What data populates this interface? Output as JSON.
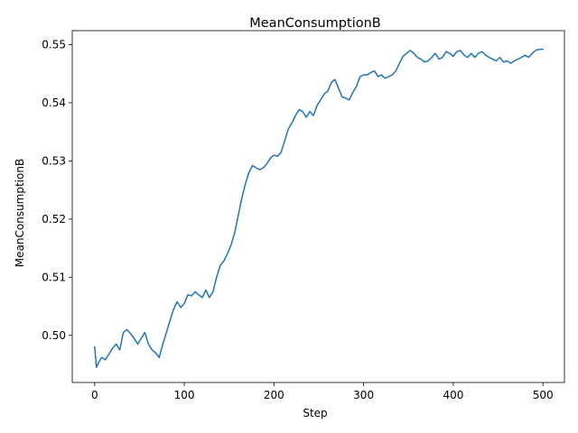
{
  "chart_data": {
    "type": "line",
    "title": "MeanConsumptionB",
    "xlabel": "Step",
    "ylabel": "MeanConsumptionB",
    "xlim": [
      -25,
      524
    ],
    "ylim": [
      0.4919,
      0.5524
    ],
    "xticks": [
      0,
      100,
      200,
      300,
      400,
      500
    ],
    "yticks": [
      0.5,
      0.51,
      0.52,
      0.53,
      0.54,
      0.55
    ],
    "xtick_labels": [
      "0",
      "100",
      "200",
      "300",
      "400",
      "500"
    ],
    "ytick_labels": [
      "0.50",
      "0.51",
      "0.52",
      "0.53",
      "0.54",
      "0.55"
    ],
    "grid": false,
    "legend": "none",
    "series": [
      {
        "color": "#1f77b4",
        "x": [
          0,
          2,
          5,
          8,
          12,
          16,
          20,
          24,
          28,
          32,
          36,
          40,
          44,
          48,
          52,
          56,
          60,
          64,
          68,
          72,
          76,
          80,
          84,
          88,
          92,
          96,
          100,
          104,
          108,
          112,
          116,
          120,
          124,
          128,
          132,
          136,
          140,
          144,
          148,
          152,
          156,
          160,
          164,
          168,
          172,
          176,
          180,
          184,
          188,
          192,
          196,
          200,
          204,
          208,
          212,
          216,
          220,
          224,
          228,
          232,
          236,
          240,
          244,
          248,
          252,
          256,
          260,
          264,
          268,
          272,
          276,
          280,
          284,
          288,
          292,
          296,
          300,
          304,
          308,
          312,
          316,
          320,
          324,
          328,
          332,
          336,
          340,
          344,
          348,
          352,
          356,
          360,
          364,
          368,
          372,
          376,
          380,
          384,
          388,
          392,
          396,
          400,
          404,
          408,
          412,
          416,
          420,
          424,
          428,
          432,
          436,
          440,
          444,
          448,
          452,
          456,
          460,
          464,
          468,
          472,
          476,
          480,
          484,
          488,
          492,
          496,
          500
        ],
        "y": [
          0.498,
          0.4945,
          0.4955,
          0.4962,
          0.4958,
          0.4968,
          0.4978,
          0.4985,
          0.4975,
          0.5005,
          0.501,
          0.5003,
          0.4995,
          0.4985,
          0.4995,
          0.5005,
          0.4985,
          0.4975,
          0.497,
          0.4962,
          0.4985,
          0.5005,
          0.5025,
          0.5045,
          0.5058,
          0.5048,
          0.5055,
          0.507,
          0.5068,
          0.5075,
          0.507,
          0.5065,
          0.5078,
          0.5065,
          0.5075,
          0.51,
          0.512,
          0.5128,
          0.514,
          0.5155,
          0.5175,
          0.5205,
          0.5235,
          0.526,
          0.528,
          0.5292,
          0.5288,
          0.5285,
          0.5288,
          0.5295,
          0.5305,
          0.531,
          0.5308,
          0.5315,
          0.5335,
          0.5355,
          0.5365,
          0.5378,
          0.5388,
          0.5385,
          0.5375,
          0.5385,
          0.5378,
          0.5395,
          0.5405,
          0.5415,
          0.542,
          0.5435,
          0.544,
          0.5425,
          0.541,
          0.5408,
          0.5405,
          0.5418,
          0.5428,
          0.5445,
          0.5448,
          0.5448,
          0.5452,
          0.5455,
          0.5445,
          0.5448,
          0.5442,
          0.5445,
          0.5448,
          0.5455,
          0.5468,
          0.548,
          0.5485,
          0.549,
          0.5485,
          0.5478,
          0.5475,
          0.547,
          0.5472,
          0.5478,
          0.5485,
          0.5475,
          0.5478,
          0.5488,
          0.5485,
          0.548,
          0.5488,
          0.549,
          0.5482,
          0.5478,
          0.5485,
          0.5478,
          0.5485,
          0.5488,
          0.5482,
          0.5478,
          0.5475,
          0.5472,
          0.5478,
          0.547,
          0.5472,
          0.5468,
          0.5472,
          0.5475,
          0.5478,
          0.5482,
          0.5478,
          0.5485,
          0.549,
          0.5492,
          0.5492
        ]
      }
    ]
  }
}
